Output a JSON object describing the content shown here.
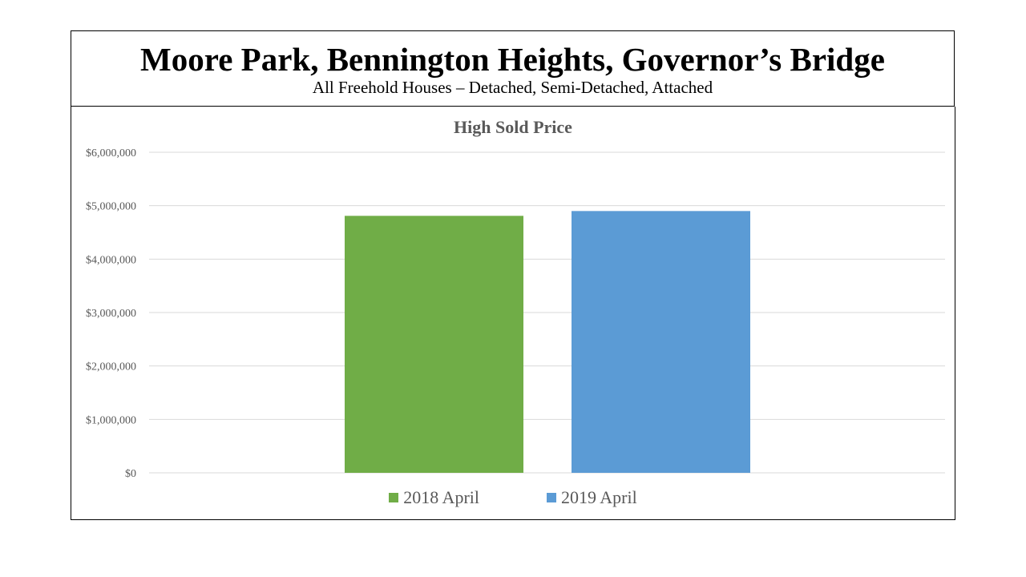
{
  "header": {
    "title": "Moore Park, Bennington Heights, Governor’s Bridge",
    "subtitle": "All Freehold Houses – Detached, Semi-Detached, Attached"
  },
  "chart_data": {
    "type": "bar",
    "title": "High Sold Price",
    "categories": [
      ""
    ],
    "series": [
      {
        "name": "2018 April",
        "values": [
          4810000
        ],
        "color": "#70ad47"
      },
      {
        "name": "2019 April",
        "values": [
          4900000
        ],
        "color": "#5b9bd5"
      }
    ],
    "ylim": [
      0,
      6000000
    ],
    "yticks": [
      0,
      1000000,
      2000000,
      3000000,
      4000000,
      5000000,
      6000000
    ],
    "ytick_labels": [
      "$0",
      "$1,000,000",
      "$2,000,000",
      "$3,000,000",
      "$4,000,000",
      "$5,000,000",
      "$6,000,000"
    ],
    "grid": true,
    "legend": "bottom",
    "colors": {
      "gridline": "#d9d9d9",
      "axis_text": "#595959"
    }
  }
}
